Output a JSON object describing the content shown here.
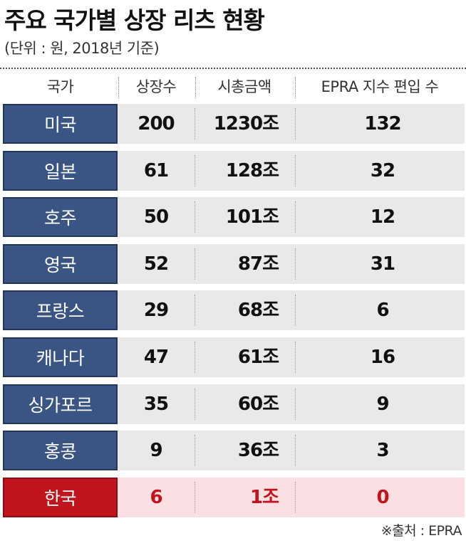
{
  "chart_data": {
    "type": "table",
    "title": "주요 국가별 상장 리츠 현황",
    "subtitle": "(단위 : 원, 2018년 기준)",
    "columns": [
      "국가",
      "상장수",
      "시총금액",
      "EPRA 지수 편입 수"
    ],
    "rows": [
      {
        "country": "미국",
        "count": "200",
        "market_cap": "1230조",
        "epra": "132",
        "highlight": false
      },
      {
        "country": "일본",
        "count": "61",
        "market_cap": "128조",
        "epra": "32",
        "highlight": false
      },
      {
        "country": "호주",
        "count": "50",
        "market_cap": "101조",
        "epra": "12",
        "highlight": false
      },
      {
        "country": "영국",
        "count": "52",
        "market_cap": "87조",
        "epra": "31",
        "highlight": false
      },
      {
        "country": "프랑스",
        "count": "29",
        "market_cap": "68조",
        "epra": "6",
        "highlight": false
      },
      {
        "country": "캐나다",
        "count": "47",
        "market_cap": "61조",
        "epra": "16",
        "highlight": false
      },
      {
        "country": "싱가포르",
        "count": "35",
        "market_cap": "60조",
        "epra": "9",
        "highlight": false
      },
      {
        "country": "홍콩",
        "count": "9",
        "market_cap": "36조",
        "epra": "3",
        "highlight": false
      },
      {
        "country": "한국",
        "count": "6",
        "market_cap": "1조",
        "epra": "0",
        "highlight": true
      }
    ],
    "source": "※출처 : EPRA"
  },
  "colors": {
    "country_cell": "#3a5584",
    "highlight_cell": "#c0151d",
    "row_background": "#e9e9e9",
    "highlight_row_background": "#fae0e2"
  }
}
